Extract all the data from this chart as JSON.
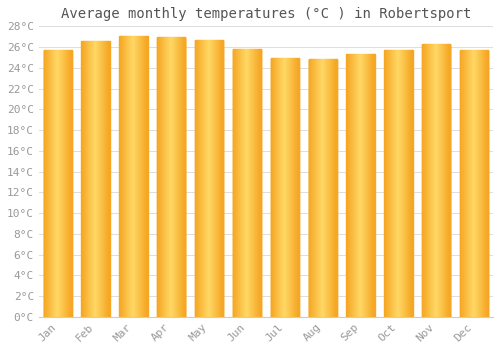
{
  "title": "Average monthly temperatures (°C ) in Robertsport",
  "months": [
    "Jan",
    "Feb",
    "Mar",
    "Apr",
    "May",
    "Jun",
    "Jul",
    "Aug",
    "Sep",
    "Oct",
    "Nov",
    "Dec"
  ],
  "values": [
    25.7,
    26.6,
    27.1,
    27.0,
    26.7,
    25.8,
    24.9,
    24.8,
    25.3,
    25.7,
    26.3,
    25.7
  ],
  "bar_color_center": "#FFD966",
  "bar_color_edge": "#F5A623",
  "background_color": "#FFFFFF",
  "grid_color": "#DDDDDD",
  "ylim": [
    0,
    28
  ],
  "yticks": [
    0,
    2,
    4,
    6,
    8,
    10,
    12,
    14,
    16,
    18,
    20,
    22,
    24,
    26,
    28
  ],
  "title_fontsize": 10,
  "tick_fontsize": 8,
  "bar_width": 0.75,
  "title_color": "#555555",
  "tick_color": "#999999"
}
